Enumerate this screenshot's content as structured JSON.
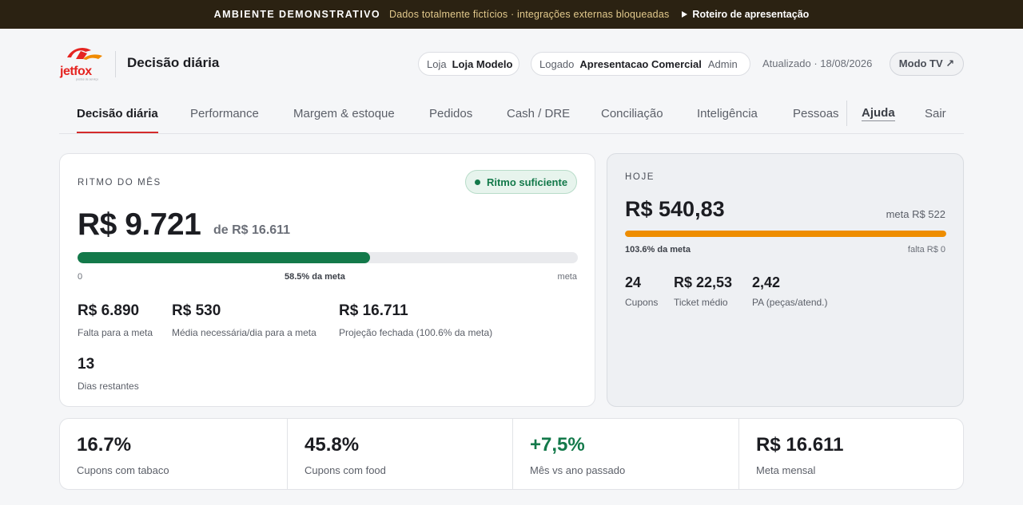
{
  "banner": {
    "label": "AMBIENTE DEMONSTRATIVO",
    "note": "Dados totalmente fictícios · integrações externas bloqueadas",
    "link": "Roteiro de apresentação"
  },
  "header": {
    "logo_text": "jetfox",
    "logo_tagline": "postos de serviço",
    "title": "Decisão diária",
    "store_label": "Loja",
    "store_value": "Loja Modelo",
    "user_label": "Logado",
    "user_name": "Apresentacao Comercial",
    "user_role": "Admin",
    "updated": "Atualizado · 18/08/2026",
    "tv_button": "Modo TV ↗"
  },
  "nav": {
    "items": [
      {
        "label": "Decisão diária",
        "active": true
      },
      {
        "label": "Performance"
      },
      {
        "label": "Margem & estoque"
      },
      {
        "label": "Pedidos"
      },
      {
        "label": "Cash / DRE"
      },
      {
        "label": "Conciliação"
      },
      {
        "label": "Inteligência"
      },
      {
        "label": "Pessoas"
      }
    ],
    "help": "Ajuda",
    "logout": "Sair"
  },
  "month": {
    "section": "RITMO DO MÊS",
    "status": "Ritmo suficiente",
    "value": "R$ 9.721",
    "of_goal": "de R$ 16.611",
    "progress": 0.585,
    "bar_start": "0",
    "bar_mid": "58.5% da meta",
    "bar_end": "meta",
    "metrics": [
      {
        "value": "R$ 6.890",
        "label": "Falta para a meta"
      },
      {
        "value": "R$ 530",
        "label": "Média necessária/dia para a meta"
      },
      {
        "value": "R$ 16.711",
        "label": "Projeção fechada (100.6% da meta)"
      },
      {
        "value": "13",
        "label": "Dias restantes"
      }
    ]
  },
  "today": {
    "section": "HOJE",
    "value": "R$ 540,83",
    "goal": "meta R$ 522",
    "progress": 1.0,
    "pct": "103.6% da meta",
    "missing": "falta R$ 0",
    "metrics": [
      {
        "value": "24",
        "label": "Cupons"
      },
      {
        "value": "R$ 22,53",
        "label": "Ticket médio"
      },
      {
        "value": "2,42",
        "label": "PA (peças/atend.)"
      }
    ]
  },
  "kpis": [
    {
      "value": "16.7%",
      "label": "Cupons com tabaco"
    },
    {
      "value": "45.8%",
      "label": "Cupons com food"
    },
    {
      "value": "+7,5%",
      "label": "Mês vs ano passado",
      "positive": true
    },
    {
      "value": "R$ 16.611",
      "label": "Meta mensal"
    }
  ],
  "colors": {
    "accent_red": "#d42b2b",
    "success_green": "#13794a",
    "today_bar": "#ee8d00",
    "banner_bg": "#2b2212"
  }
}
